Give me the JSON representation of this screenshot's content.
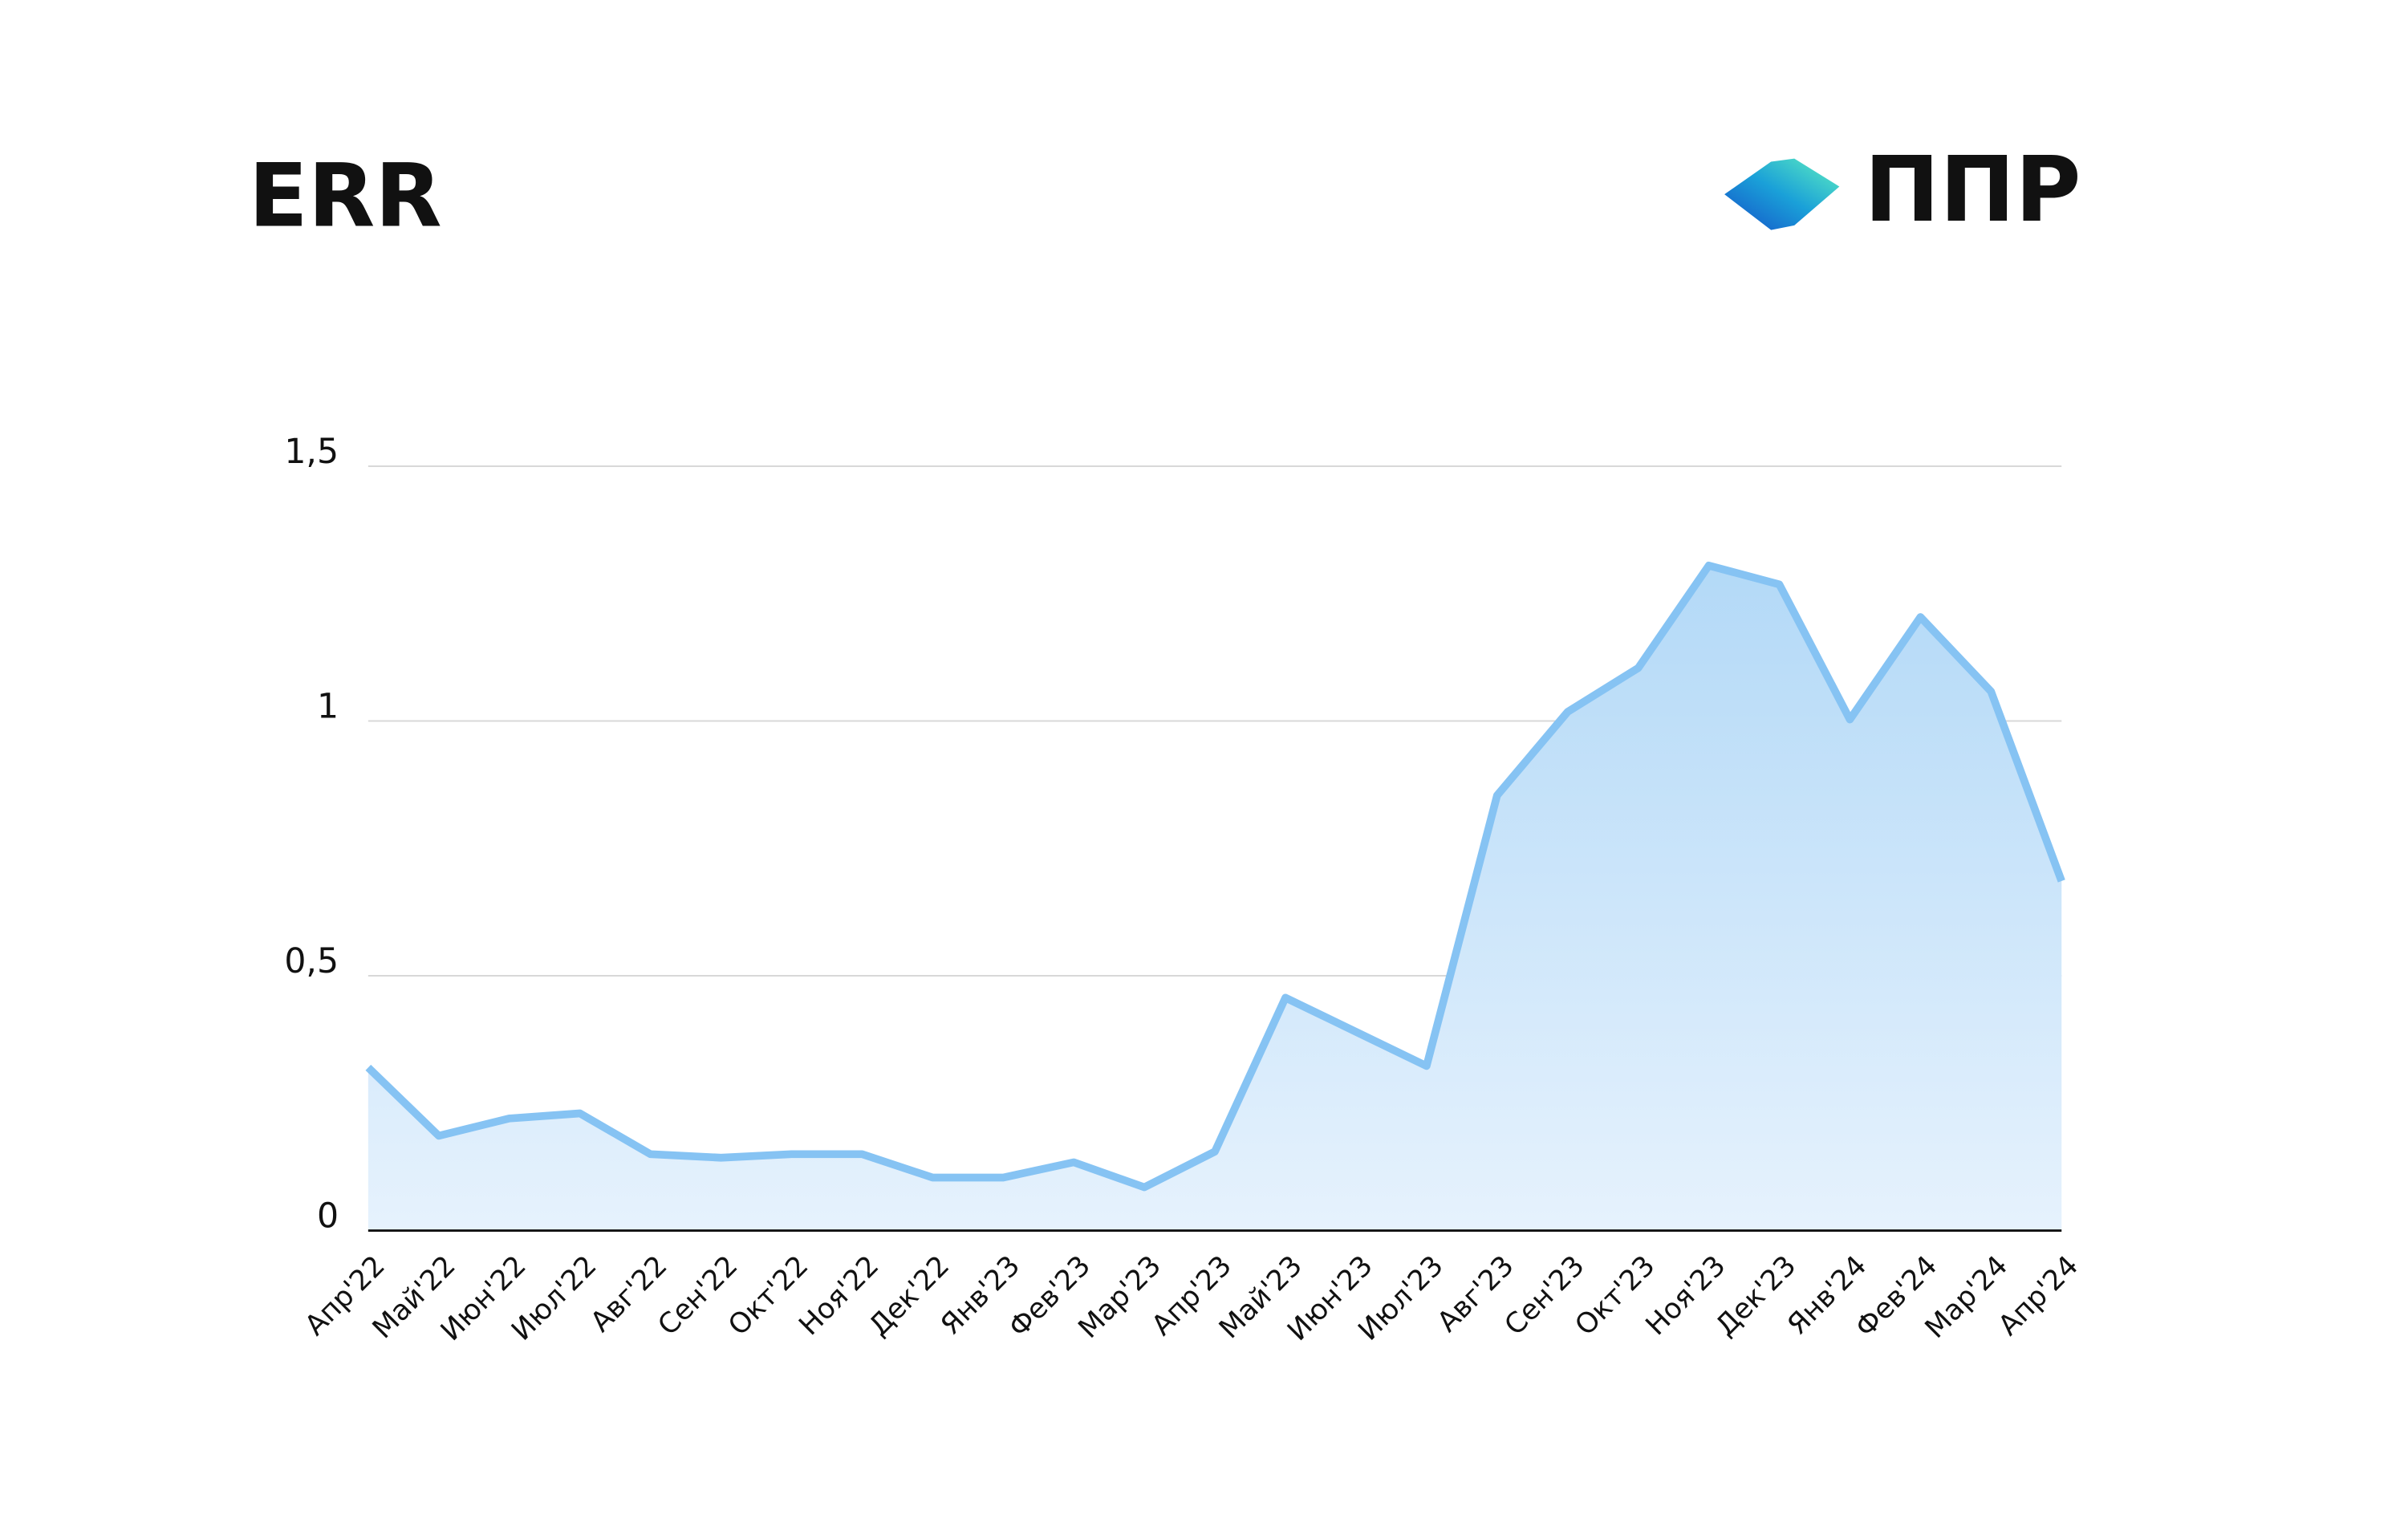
{
  "chart_data": {
    "type": "area",
    "title": "ERR",
    "brand": "ППР",
    "categories": [
      "Апр'22",
      "Май'22",
      "Июн'22",
      "Июл'22",
      "Авг'22",
      "Сен'22",
      "Окт'22",
      "Ноя'22",
      "Дек'22",
      "Янв'23",
      "Фев'23",
      "Мар'23",
      "Апр'23",
      "Май'23",
      "Июн'23",
      "Июл'23",
      "Авг'23",
      "Сен'23",
      "Окт'23",
      "Ноя'23",
      "Дек'23",
      "Янв'24",
      "Фев'24",
      "Мар'24",
      "Апр'24"
    ],
    "values": [
      0.32,
      0.186,
      0.22,
      0.23,
      0.15,
      0.143,
      0.15,
      0.15,
      0.104,
      0.104,
      0.134,
      0.085,
      0.155,
      0.457,
      0.39,
      0.323,
      0.854,
      1.018,
      1.104,
      1.305,
      1.268,
      1.003,
      1.204,
      1.058,
      0.686
    ],
    "color": "#86c3f3",
    "ylim": [
      0,
      1.5
    ],
    "yticks": [
      0,
      {
        "value": 0.5,
        "label": "0,5"
      },
      1,
      {
        "value": 1.5,
        "label": "1,5"
      }
    ],
    "grid": true
  }
}
